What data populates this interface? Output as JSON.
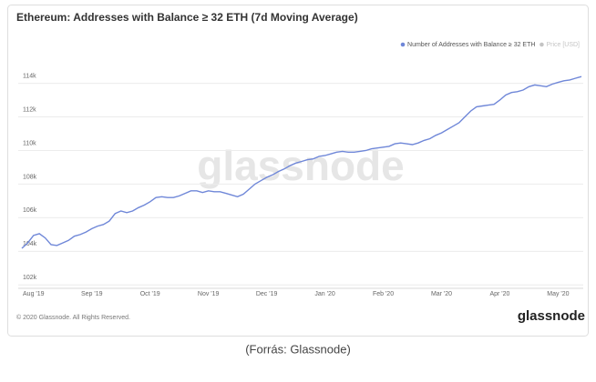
{
  "chart_data": {
    "type": "line",
    "title": "Ethereum: Addresses with Balance ≥ 32 ETH (7d Moving Average)",
    "categories": [
      null,
      null,
      "Aug '19",
      null,
      null,
      null,
      null,
      null,
      null,
      null,
      null,
      null,
      "Sep '19",
      null,
      null,
      null,
      null,
      null,
      null,
      null,
      null,
      null,
      "Oct '19",
      null,
      null,
      null,
      null,
      null,
      null,
      null,
      null,
      null,
      "Nov '19",
      null,
      null,
      null,
      null,
      null,
      null,
      null,
      null,
      null,
      "Dec '19",
      null,
      null,
      null,
      null,
      null,
      null,
      null,
      null,
      null,
      "Jan '20",
      null,
      null,
      null,
      null,
      null,
      null,
      null,
      null,
      null,
      "Feb '20",
      null,
      null,
      null,
      null,
      null,
      null,
      null,
      null,
      null,
      "Mar '20",
      null,
      null,
      null,
      null,
      null,
      null,
      null,
      null,
      null,
      "Apr '20",
      null,
      null,
      null,
      null,
      null,
      null,
      null,
      null,
      null,
      "May '20",
      null,
      null,
      null,
      null
    ],
    "series": [
      {
        "name": "Number of Addresses with Balance ≥ 32 ETH",
        "color": "#6f87d8",
        "values": [
          104180,
          104500,
          104950,
          105050,
          104800,
          104400,
          104350,
          104500,
          104650,
          104900,
          105000,
          105150,
          105350,
          105500,
          105600,
          105800,
          106250,
          106400,
          106300,
          106400,
          106600,
          106750,
          106950,
          107200,
          107250,
          107200,
          107200,
          107300,
          107450,
          107600,
          107600,
          107500,
          107600,
          107550,
          107550,
          107450,
          107350,
          107250,
          107400,
          107700,
          108000,
          108200,
          108400,
          108550,
          108750,
          108900,
          109100,
          109250,
          109350,
          109450,
          109500,
          109650,
          109700,
          109800,
          109900,
          109950,
          109900,
          109900,
          109950,
          110000,
          110100,
          110150,
          110200,
          110250,
          110400,
          110450,
          110400,
          110350,
          110450,
          110600,
          110700,
          110900,
          111050,
          111250,
          111450,
          111650,
          112000,
          112350,
          112600,
          112650,
          112700,
          112750,
          113000,
          113300,
          113450,
          113500,
          113600,
          113800,
          113900,
          113850,
          113800,
          113950,
          114050,
          114150,
          114200,
          114300,
          114400
        ]
      }
    ],
    "hidden_series": {
      "name": "Price [USD]",
      "color": "#c4c4c4"
    },
    "ylim": [
      101800,
      115600
    ],
    "yticks": [
      {
        "value": 102000,
        "label": "102k"
      },
      {
        "value": 104000,
        "label": "104k"
      },
      {
        "value": 106000,
        "label": "106k"
      },
      {
        "value": 108000,
        "label": "108k"
      },
      {
        "value": 110000,
        "label": "110k"
      },
      {
        "value": 112000,
        "label": "112k"
      },
      {
        "value": 114000,
        "label": "114k"
      }
    ],
    "grid": true,
    "legend": "top-right",
    "watermark": "glassnode",
    "footer": "© 2020 Glassnode. All Rights Reserved.",
    "logo": "glassnode"
  },
  "caption": "(Forrás: Glassnode)"
}
